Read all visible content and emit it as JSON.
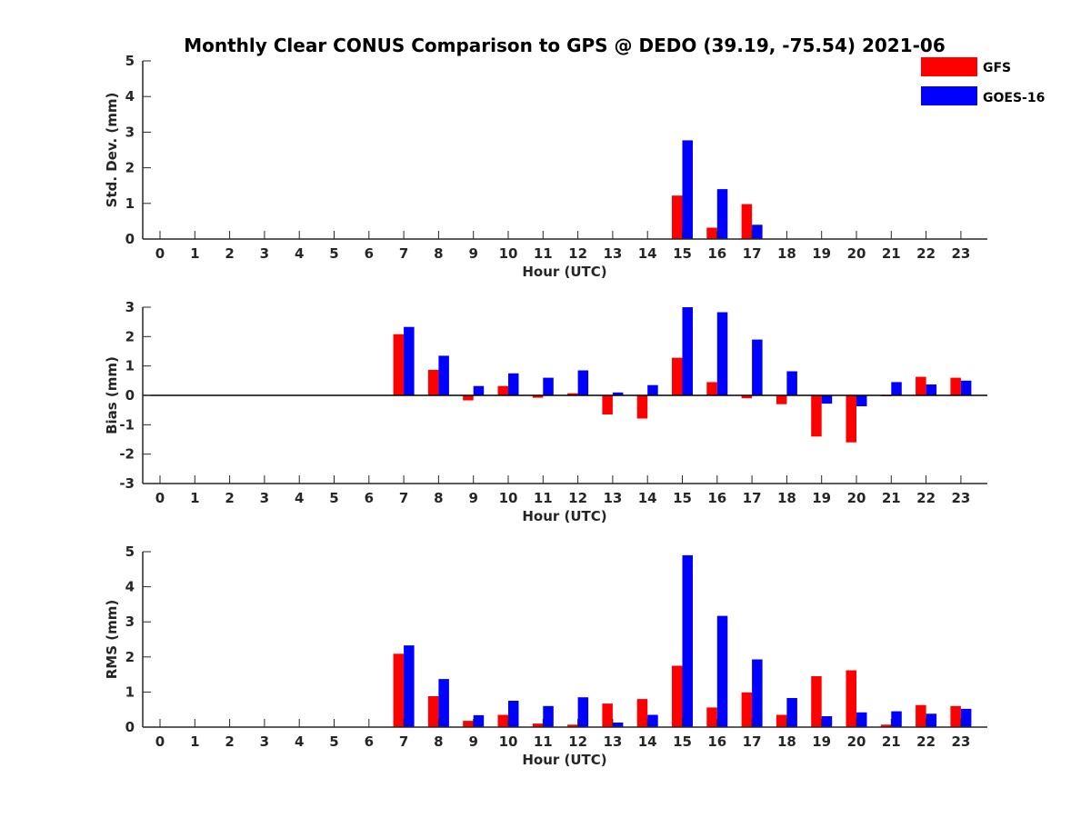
{
  "title": "Monthly Clear CONUS Comparison to GPS @ DEDO (39.19, -75.54) 2021-06",
  "legend": [
    {
      "name": "GFS",
      "color": "#ff0000"
    },
    {
      "name": "GOES-16",
      "color": "#0000ff"
    }
  ],
  "chart_data": [
    {
      "type": "bar",
      "xlabel": "Hour (UTC)",
      "ylabel": "Std. Dev. (mm)",
      "ylim": [
        0,
        5
      ],
      "yticks": [
        0,
        1,
        2,
        3,
        4,
        5
      ],
      "categories": [
        0,
        1,
        2,
        3,
        4,
        5,
        6,
        7,
        8,
        9,
        10,
        11,
        12,
        13,
        14,
        15,
        16,
        17,
        18,
        19,
        20,
        21,
        22,
        23
      ],
      "series": [
        {
          "name": "GFS",
          "values": [
            null,
            null,
            null,
            null,
            null,
            null,
            null,
            null,
            null,
            null,
            null,
            null,
            null,
            null,
            null,
            1.22,
            0.32,
            0.98,
            null,
            null,
            null,
            null,
            null,
            null
          ]
        },
        {
          "name": "GOES-16",
          "values": [
            null,
            null,
            null,
            null,
            null,
            null,
            null,
            null,
            null,
            null,
            null,
            null,
            null,
            null,
            null,
            2.77,
            1.4,
            0.4,
            null,
            null,
            null,
            null,
            null,
            null
          ]
        }
      ]
    },
    {
      "type": "bar",
      "xlabel": "Hour (UTC)",
      "ylabel": "Bias (mm)",
      "ylim": [
        -3,
        3
      ],
      "yticks": [
        -3,
        -2,
        -1,
        0,
        1,
        2,
        3
      ],
      "categories": [
        0,
        1,
        2,
        3,
        4,
        5,
        6,
        7,
        8,
        9,
        10,
        11,
        12,
        13,
        14,
        15,
        16,
        17,
        18,
        19,
        20,
        21,
        22,
        23
      ],
      "series": [
        {
          "name": "GFS",
          "values": [
            null,
            null,
            null,
            null,
            null,
            null,
            null,
            2.08,
            0.87,
            -0.17,
            0.32,
            -0.08,
            0.07,
            -0.65,
            -0.79,
            1.28,
            0.45,
            -0.1,
            -0.3,
            -1.4,
            -1.6,
            -0.03,
            0.63,
            0.6
          ]
        },
        {
          "name": "GOES-16",
          "values": [
            null,
            null,
            null,
            null,
            null,
            null,
            null,
            2.33,
            1.35,
            0.32,
            0.75,
            0.6,
            0.85,
            0.1,
            0.35,
            3.0,
            2.83,
            1.9,
            0.82,
            -0.28,
            -0.37,
            0.45,
            0.37,
            0.5
          ]
        }
      ]
    },
    {
      "type": "bar",
      "xlabel": "Hour (UTC)",
      "ylabel": "RMS (mm)",
      "ylim": [
        0,
        5
      ],
      "yticks": [
        0,
        1,
        2,
        3,
        4,
        5
      ],
      "categories": [
        0,
        1,
        2,
        3,
        4,
        5,
        6,
        7,
        8,
        9,
        10,
        11,
        12,
        13,
        14,
        15,
        16,
        17,
        18,
        19,
        20,
        21,
        22,
        23
      ],
      "series": [
        {
          "name": "GFS",
          "values": [
            null,
            null,
            null,
            null,
            null,
            null,
            null,
            2.09,
            0.88,
            0.18,
            0.35,
            0.1,
            0.07,
            0.67,
            0.8,
            1.75,
            0.56,
            0.99,
            0.35,
            1.45,
            1.62,
            0.07,
            0.63,
            0.6
          ]
        },
        {
          "name": "GOES-16",
          "values": [
            null,
            null,
            null,
            null,
            null,
            null,
            null,
            2.33,
            1.37,
            0.34,
            0.75,
            0.6,
            0.85,
            0.13,
            0.35,
            4.9,
            3.17,
            1.93,
            0.83,
            0.31,
            0.42,
            0.45,
            0.38,
            0.52
          ]
        }
      ]
    }
  ]
}
